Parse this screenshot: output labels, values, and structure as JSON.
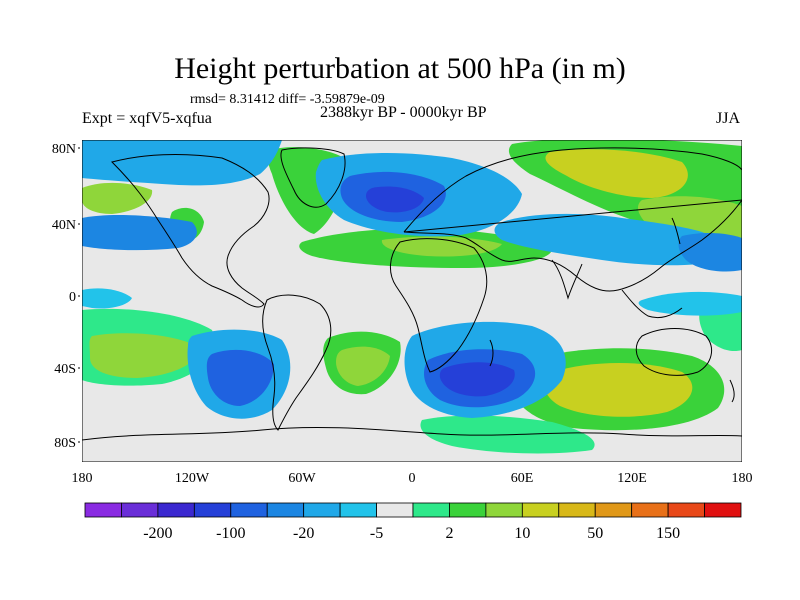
{
  "title": "Height perturbation at 500 hPa (in m)",
  "stats": "rmsd= 8.31412 diff= -3.59879e-09",
  "experiment": "Expt = xqfV5-xqfua",
  "period": "2388kyr BP - 0000kyr BP",
  "season": "JJA",
  "map": {
    "lat_labels": [
      "80N",
      "40N",
      "0",
      "40S",
      "80S"
    ],
    "lon_labels": [
      "180",
      "120W",
      "60W",
      "0",
      "60E",
      "120E",
      "180"
    ],
    "background_color": "#e8e8e8",
    "coastline_color": "#000000"
  },
  "colorbar": {
    "colors": [
      "#8a2be2",
      "#6a2ed8",
      "#3b28d0",
      "#2540d8",
      "#1f62e0",
      "#1c86e2",
      "#20a8e8",
      "#22c3ea",
      "#e8e8e8",
      "#2ee88a",
      "#3ad23a",
      "#8fd63a",
      "#c8d020",
      "#d8b818",
      "#e09818",
      "#e87018",
      "#e84818",
      "#e01010"
    ],
    "labels": [
      "-200",
      "-100",
      "-20",
      "-5",
      "2",
      "10",
      "50",
      "150"
    ]
  }
}
